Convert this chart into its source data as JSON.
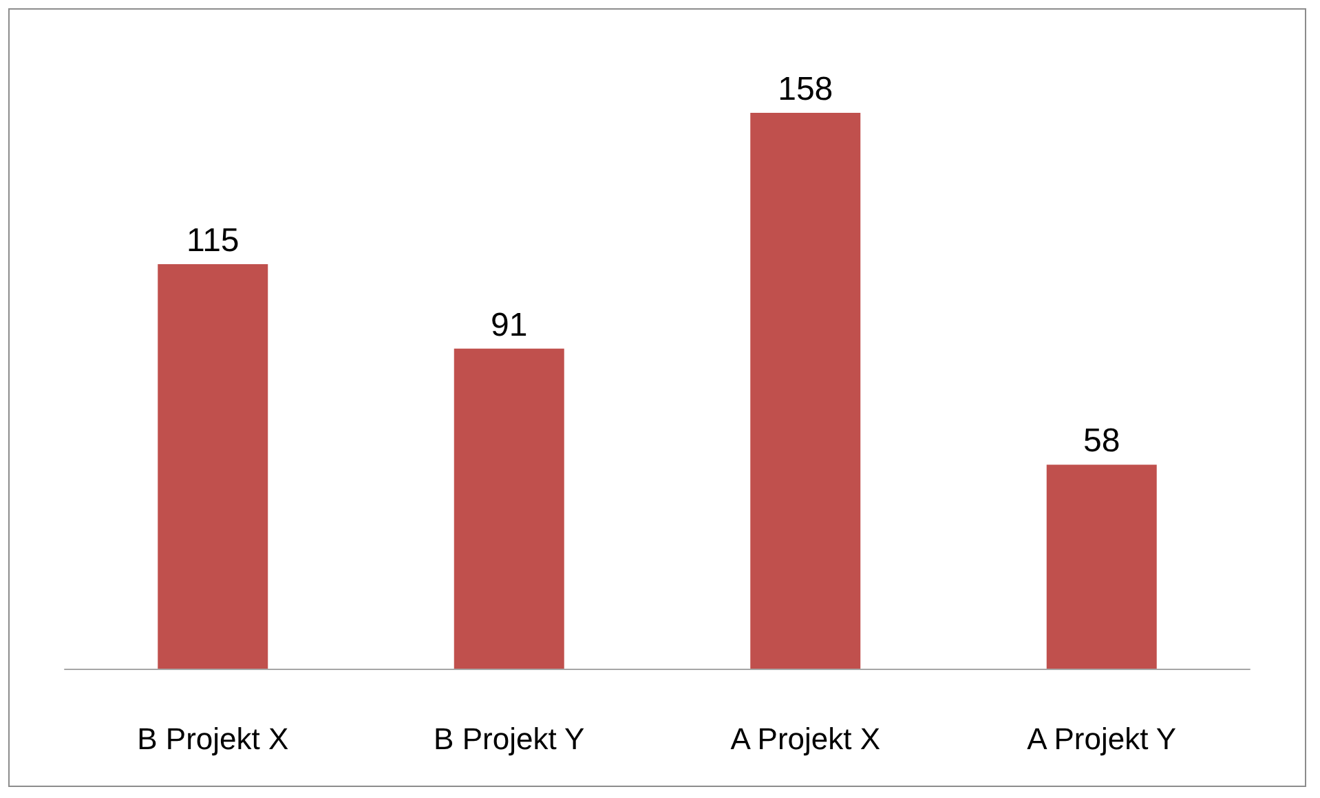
{
  "chart_data": {
    "type": "bar",
    "categories": [
      "B Projekt X",
      "B Projekt Y",
      "A Projekt X",
      "A Projekt Y"
    ],
    "values": [
      115,
      91,
      158,
      58
    ],
    "color": "#c0504d",
    "data_labels": true
  }
}
